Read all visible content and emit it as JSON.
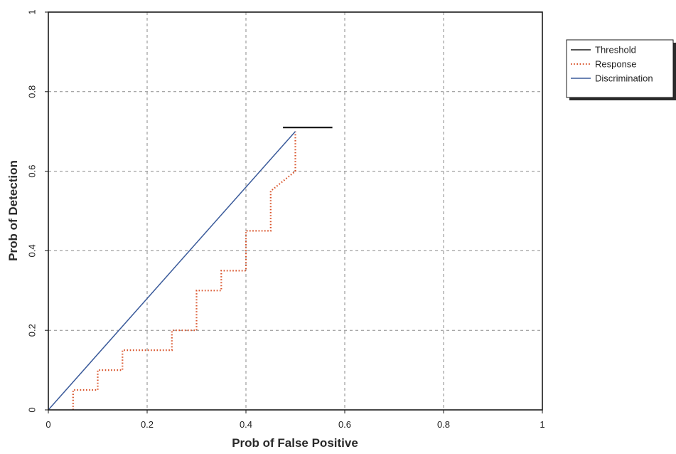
{
  "chart_data": {
    "type": "line",
    "title": "",
    "xlabel": "Prob of False Positive",
    "ylabel": "Prob of Detection",
    "xlim": [
      0,
      1
    ],
    "ylim": [
      0,
      1
    ],
    "xticks": [
      0,
      0.2,
      0.4,
      0.6,
      0.8,
      1
    ],
    "yticks": [
      0,
      0.2,
      0.4,
      0.6,
      0.8,
      1
    ],
    "xtick_labels": [
      "0",
      "0.2",
      "0.4",
      "0.6",
      "0.8",
      "1"
    ],
    "ytick_labels": [
      "0",
      "0.2",
      "0.4",
      "0.6",
      "0.8",
      "1"
    ],
    "grid": true,
    "legend_position": "top-right, outside plot",
    "series": [
      {
        "name": "Threshold",
        "style": "solid",
        "color": "#1a1a1a",
        "x": [
          0.475,
          0.575
        ],
        "y": [
          0.71,
          0.71
        ]
      },
      {
        "name": "Response",
        "style": "dotted",
        "color": "#d9542b",
        "x": [
          0.05,
          0.05,
          0.1,
          0.1,
          0.15,
          0.15,
          0.25,
          0.25,
          0.3,
          0.3,
          0.35,
          0.35,
          0.4,
          0.4,
          0.45,
          0.45,
          0.5,
          0.5
        ],
        "y": [
          0.0,
          0.05,
          0.05,
          0.1,
          0.1,
          0.15,
          0.15,
          0.2,
          0.2,
          0.3,
          0.3,
          0.35,
          0.35,
          0.45,
          0.45,
          0.55,
          0.6,
          0.7
        ]
      },
      {
        "name": "Discrimination",
        "style": "solid",
        "color": "#3a5a9a",
        "x": [
          0,
          0.5
        ],
        "y": [
          0,
          0.7
        ]
      }
    ]
  }
}
